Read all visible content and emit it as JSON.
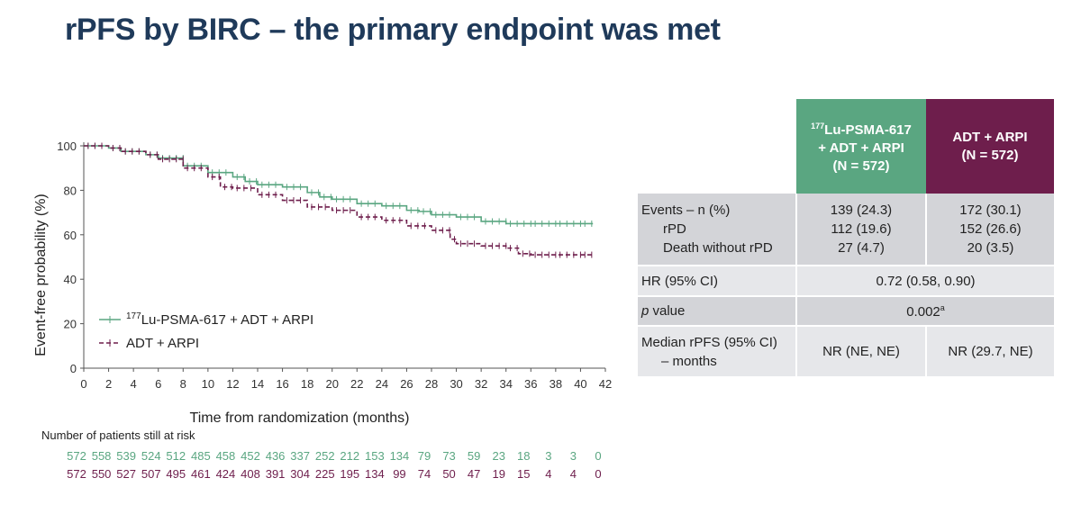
{
  "title": "rPFS by BIRC – the primary endpoint was met",
  "colors": {
    "title": "#1f3a5a",
    "lu_series": "#5aa681",
    "adt_series": "#6e1e4c",
    "table_gray": "#d3d4d8",
    "table_light": "#e6e7ea"
  },
  "chart_data": {
    "type": "line",
    "subtype": "kaplan-meier",
    "xlabel": "Time from randomization (months)",
    "ylabel": "Event-free probability (%)",
    "xlim": [
      0,
      42
    ],
    "ylim": [
      0,
      100
    ],
    "x_ticks": [
      "0",
      "2",
      "4",
      "6",
      "8",
      "10",
      "12",
      "14",
      "16",
      "18",
      "20",
      "22",
      "24",
      "26",
      "28",
      "30",
      "32",
      "34",
      "36",
      "38",
      "40",
      "42"
    ],
    "y_ticks": [
      "0",
      "20",
      "40",
      "60",
      "80",
      "100"
    ],
    "grid": false,
    "legend_position": "bottom-left",
    "series": [
      {
        "name": "Lu-PSMA-617 + ADT + ARPI",
        "name_sup": "177",
        "color": "#5aa681",
        "line_style": "solid",
        "x": [
          0,
          2,
          3,
          5,
          6,
          8,
          10,
          12,
          13,
          14,
          16,
          18,
          19,
          20,
          22,
          24,
          26,
          27,
          28,
          30,
          32,
          34,
          36,
          38,
          40,
          41
        ],
        "y": [
          100,
          99,
          97.5,
          96,
          94.5,
          91,
          88,
          86,
          84,
          82.5,
          81.5,
          79,
          77,
          76,
          74,
          73,
          71,
          70.5,
          69,
          68,
          66,
          65,
          65,
          65,
          65,
          65
        ]
      },
      {
        "name": "ADT + ARPI",
        "color": "#6e1e4c",
        "line_style": "dashed",
        "x": [
          0,
          2,
          3,
          5,
          6,
          8,
          10,
          11,
          12,
          14,
          16,
          18,
          20,
          22,
          24,
          26,
          28,
          29.5,
          30,
          32,
          34,
          35,
          36,
          38,
          40,
          41
        ],
        "y": [
          100,
          99,
          97.5,
          96,
          94,
          90,
          86,
          81.5,
          81,
          78,
          75.5,
          72.5,
          71,
          68,
          66.5,
          64,
          62,
          58,
          56,
          55,
          54,
          51.5,
          51,
          51,
          51,
          51
        ]
      }
    ],
    "risk_table": {
      "title": "Number of patients still at risk",
      "x": [
        0,
        2,
        4,
        6,
        8,
        10,
        12,
        14,
        16,
        18,
        20,
        22,
        24,
        26,
        28,
        30,
        32,
        34,
        36,
        38,
        40,
        42
      ],
      "rows": [
        {
          "series": "Lu-PSMA-617 + ADT + ARPI",
          "color": "#5aa681",
          "values": [
            "572",
            "558",
            "539",
            "524",
            "512",
            "485",
            "458",
            "452",
            "436",
            "337",
            "252",
            "212",
            "153",
            "134",
            "79",
            "73",
            "59",
            "23",
            "18",
            "3",
            "3",
            "0"
          ]
        },
        {
          "series": "ADT + ARPI",
          "color": "#6e1e4c",
          "values": [
            "572",
            "550",
            "527",
            "507",
            "495",
            "461",
            "424",
            "408",
            "391",
            "304",
            "225",
            "195",
            "134",
            "99",
            "74",
            "50",
            "47",
            "19",
            "15",
            "4",
            "4",
            "0"
          ]
        }
      ]
    }
  },
  "table": {
    "header_lu_sup": "177",
    "header_lu_line1": "Lu-PSMA-617",
    "header_lu_line2": "+ ADT + ARPI",
    "header_lu_line3": "(N = 572)",
    "header_adt_line1": "ADT + ARPI",
    "header_adt_line2": "(N = 572)",
    "events_label": "Events – n (%)",
    "events_lu": "139 (24.3)",
    "events_adt": "172 (30.1)",
    "rpd_label": "rPD",
    "rpd_lu": "112 (19.6)",
    "rpd_adt": "152 (26.6)",
    "death_label": "Death without rPD",
    "death_lu": "27 (4.7)",
    "death_adt": "20 (3.5)",
    "hr_label": "HR (95% CI)",
    "hr_value": "0.72 (0.58, 0.90)",
    "p_label_italic": "p",
    "p_label_rest": " value",
    "p_value": "0.002",
    "p_value_sup": "a",
    "median_label_line1": "Median rPFS (95% CI)",
    "median_label_line2": "– months",
    "median_lu": "NR (NE, NE)",
    "median_adt": "NR (29.7, NE)"
  }
}
